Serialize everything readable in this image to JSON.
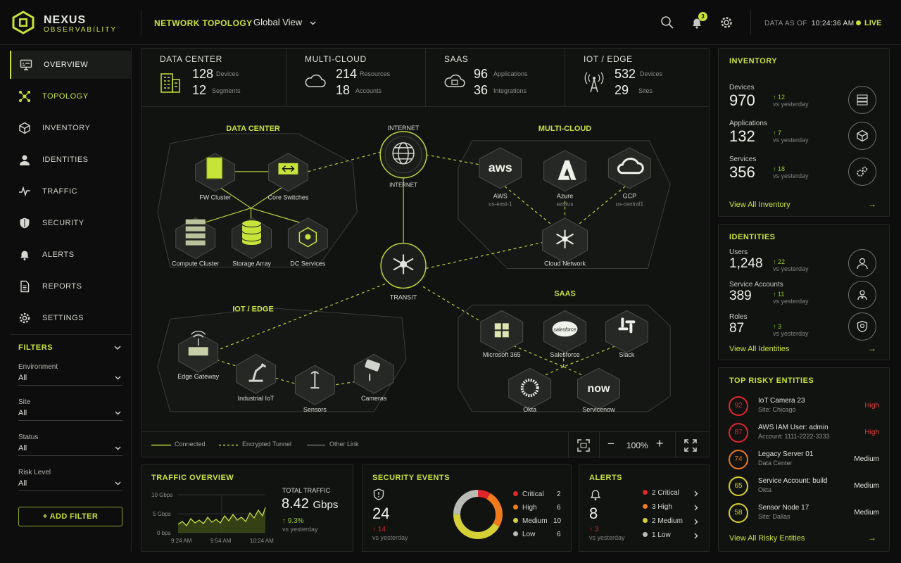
{
  "app": {
    "brand_line1": "NEXUS",
    "brand_line2": "OBSERVABILITY"
  },
  "header": {
    "nav_title": "NETWORK TOPOLOGY",
    "view": "Global View",
    "notif_count": "3",
    "data_as_of_label": "DATA AS OF",
    "time": "10:24:36 AM",
    "live": "LIVE"
  },
  "sidebar": {
    "items": [
      "OVERVIEW",
      "TOPOLOGY",
      "INVENTORY",
      "IDENTITIES",
      "TRAFFIC",
      "SECURITY",
      "ALERTS",
      "REPORTS",
      "SETTINGS"
    ]
  },
  "filters": {
    "title": "FILTERS",
    "groups": [
      {
        "label": "Environment",
        "value": "All"
      },
      {
        "label": "Site",
        "value": "All"
      },
      {
        "label": "Status",
        "value": "All"
      },
      {
        "label": "Risk Level",
        "value": "All"
      }
    ],
    "add": "+ ADD FILTER"
  },
  "summary": [
    {
      "title": "DATA CENTER",
      "n1": "128",
      "l1": "Devices",
      "n2": "12",
      "l2": "Segments"
    },
    {
      "title": "MULTI-CLOUD",
      "n1": "214",
      "l1": "Resources",
      "n2": "18",
      "l2": "Accounts"
    },
    {
      "title": "SAAS",
      "n1": "96",
      "l1": "Applications",
      "n2": "36",
      "l2": "Integrations"
    },
    {
      "title": "IOT / EDGE",
      "n1": "532",
      "l1": "Devices",
      "n2": "29",
      "l2": "Sites"
    }
  ],
  "topology": {
    "groups": {
      "dc": "DATA CENTER",
      "mc": "MULTI-CLOUD",
      "iot": "IOT / EDGE",
      "saas": "SAAS"
    },
    "nodes": {
      "internet": "INTERNET",
      "internet_sub": "INTERNET",
      "transit": "TRANSIT",
      "fw": "FW Cluster",
      "core": "Core Switches",
      "compute": "Compute Cluster",
      "storage": "Storage Array",
      "dcsvc": "DC Services",
      "aws": "AWS",
      "aws_sub": "us-east-1",
      "azure": "Azure",
      "azure_sub": "eastus",
      "gcp": "GCP",
      "gcp_sub": "us-central1",
      "cloudnet": "Cloud Network",
      "edge": "Edge Gateway",
      "iiot": "Industrial IoT",
      "sensors": "Sensors",
      "cameras": "Cameras",
      "ms365": "Microsoft 365",
      "salesforce": "Salesforce",
      "slack": "Slack",
      "okta": "Okta",
      "servicenow": "Servicenow"
    },
    "logos": {
      "aws": "aws",
      "salesforce": "salesforce",
      "now": "now"
    }
  },
  "legend": {
    "connected": "Connected",
    "encrypted": "Encrypted Tunnel",
    "other": "Other Link",
    "zoom": "100%"
  },
  "inventory": {
    "title": "INVENTORY",
    "rows": [
      {
        "label": "Devices",
        "value": "970",
        "delta": "↑ 12",
        "since": "vs yesterday"
      },
      {
        "label": "Applications",
        "value": "132",
        "delta": "↑ 7",
        "since": "vs yesterday"
      },
      {
        "label": "Services",
        "value": "356",
        "delta": "↑ 18",
        "since": "vs yesterday"
      }
    ],
    "view_all": "View All Inventory"
  },
  "identities": {
    "title": "IDENTITIES",
    "rows": [
      {
        "label": "Users",
        "value": "1,248",
        "delta": "↑ 22",
        "since": "vs yesterday"
      },
      {
        "label": "Service Accounts",
        "value": "389",
        "delta": "↑ 11",
        "since": "vs yesterday"
      },
      {
        "label": "Roles",
        "value": "87",
        "delta": "↑ 3",
        "since": "vs yesterday"
      }
    ],
    "view_all": "View All Identities"
  },
  "risky": {
    "title": "TOP RISKY ENTITIES",
    "rows": [
      {
        "score": "92",
        "name": "IoT Camera 23",
        "sub": "Site: Chicago",
        "sev": "High",
        "color": "#e0262b"
      },
      {
        "score": "87",
        "name": "AWS IAM User: admin",
        "sub": "Account: 1111-2222-3333",
        "sev": "High",
        "color": "#e0262b"
      },
      {
        "score": "74",
        "name": "Legacy Server 01",
        "sub": "Data Center",
        "sev": "Medium",
        "color": "#e8761c"
      },
      {
        "score": "65",
        "name": "Service Account: build",
        "sub": "Okta",
        "sev": "Medium",
        "color": "#d8cf2a"
      },
      {
        "score": "58",
        "name": "Sensor Node 17",
        "sub": "Site: Dallas",
        "sev": "Medium",
        "color": "#d8cf2a"
      }
    ],
    "view_all": "View All Risky Entities"
  },
  "traffic": {
    "title": "TRAFFIC OVERVIEW",
    "y_labels": [
      "10 Gbps",
      "5 Gbps",
      "0 bps"
    ],
    "x_labels": [
      "9:24 AM",
      "9:54 AM",
      "10:24 AM"
    ],
    "total_label": "TOTAL TRAFFIC",
    "total_value": "8.42",
    "total_unit": "Gbps",
    "delta": "↑ 9.3%",
    "since": "vs yesterday"
  },
  "security": {
    "title": "SECURITY EVENTS",
    "total": "24",
    "delta": "↑ 14",
    "since": "vs yesterday",
    "items": [
      {
        "label": "Critical",
        "value": "2",
        "color": "#e0262b"
      },
      {
        "label": "High",
        "value": "6",
        "color": "#ef7b1d"
      },
      {
        "label": "Medium",
        "value": "10",
        "color": "#d5d035"
      },
      {
        "label": "Low",
        "value": "6",
        "color": "#b8bcb5"
      }
    ]
  },
  "alerts": {
    "title": "ALERTS",
    "total": "8",
    "delta": "↑ 3",
    "since": "vs yesterday",
    "items": [
      {
        "label": "2 Critical",
        "color": "#e0262b"
      },
      {
        "label": "3 High",
        "color": "#ef7b1d"
      },
      {
        "label": "2 Medium",
        "color": "#d5d035"
      },
      {
        "label": "1 Low",
        "color": "#b8bcb5"
      }
    ]
  }
}
